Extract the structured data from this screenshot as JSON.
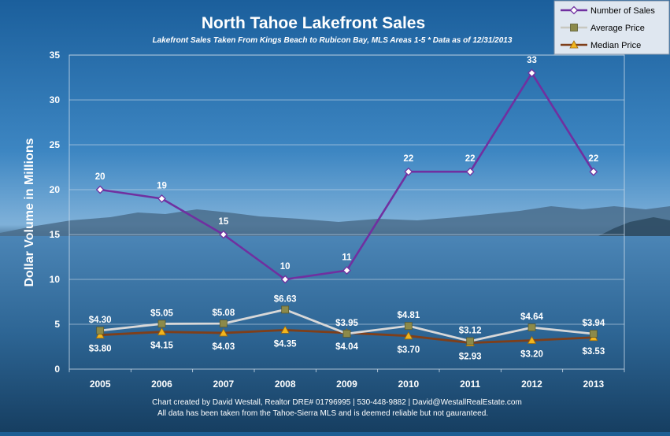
{
  "chart_data": {
    "type": "line",
    "title": "North Tahoe Lakefront Sales",
    "subtitle": "Lakefront Sales Taken From Kings Beach to Rubicon Bay, MLS Areas 1-5  * Data as of 12/31/2013",
    "xlabel": "",
    "ylabel": "Dollar Volume in Millions",
    "ylim": [
      0,
      35
    ],
    "yticks": [
      "0",
      "5",
      "10",
      "15",
      "20",
      "25",
      "30",
      "35"
    ],
    "grid": true,
    "legend": "top-right",
    "categories": [
      "2005",
      "2006",
      "2007",
      "2008",
      "2009",
      "2010",
      "2011",
      "2012",
      "2013"
    ],
    "series": [
      {
        "name": "Number of Sales",
        "color": "#7030a0",
        "marker": "diamond",
        "values": [
          20,
          19,
          15,
          10,
          11,
          22,
          22,
          33,
          22
        ],
        "labels": [
          "20",
          "19",
          "15",
          "10",
          "11",
          "22",
          "22",
          "33",
          "22"
        ],
        "label_position": "above"
      },
      {
        "name": "Average Price",
        "color": "#d8d8d8",
        "marker": "square",
        "values": [
          4.3,
          5.05,
          5.08,
          6.63,
          3.95,
          4.81,
          3.12,
          4.64,
          3.94
        ],
        "labels": [
          "$4.30",
          "$5.05",
          "$5.08",
          "$6.63",
          "$3.95",
          "$4.81",
          "$3.12",
          "$4.64",
          "$3.94"
        ],
        "label_position": "above"
      },
      {
        "name": "Median Price",
        "color": "#7f3f1a",
        "marker": "triangle",
        "values": [
          3.8,
          4.15,
          4.03,
          4.35,
          4.04,
          3.7,
          2.93,
          3.2,
          3.53
        ],
        "labels": [
          "$3.80",
          "$4.15",
          "$4.03",
          "$4.35",
          "$4.04",
          "$3.70",
          "$2.93",
          "$3.20",
          "$3.53"
        ],
        "label_position": "below"
      }
    ]
  },
  "footer": {
    "line1": "Chart created by David Westall, Realtor DRE# 01796995 | 530-448-9882 | David@WestallRealEstate.com",
    "line2": "All data has been taken from the Tahoe-Sierra MLS and is deemed reliable but not gauranteed."
  }
}
